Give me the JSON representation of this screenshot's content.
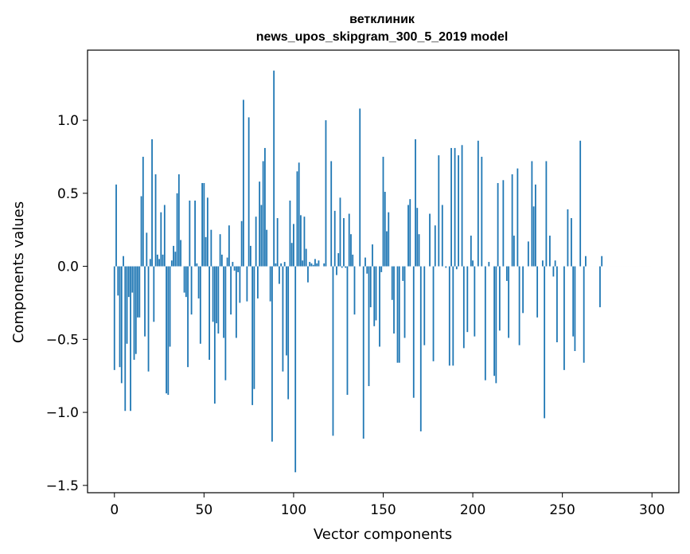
{
  "chart_data": {
    "type": "bar",
    "title_line1": "ветклиник",
    "title_line2": "news_upos_skipgram_300_5_2019 model",
    "xlabel": "Vector components",
    "ylabel": "Components values",
    "xlim": [
      -15,
      315
    ],
    "ylim": [
      -1.55,
      1.48
    ],
    "x_ticks": [
      0,
      50,
      100,
      150,
      200,
      250,
      300
    ],
    "x_tick_labels": [
      "0",
      "50",
      "100",
      "150",
      "200",
      "250",
      "300"
    ],
    "y_ticks": [
      -1.5,
      -1.0,
      -0.5,
      0.0,
      0.5,
      1.0
    ],
    "y_tick_labels": [
      "−1.5",
      "−1.0",
      "−0.5",
      "0.0",
      "0.5",
      "1.0"
    ],
    "bar_color": "#1f77b4",
    "grid": false,
    "values": [
      -0.71,
      0.56,
      -0.2,
      -0.69,
      -0.8,
      0.07,
      -0.99,
      -0.53,
      -0.21,
      -0.99,
      -0.18,
      -0.64,
      -0.6,
      -0.35,
      -0.35,
      0.48,
      0.75,
      -0.48,
      0.23,
      -0.72,
      0.05,
      0.87,
      -0.38,
      0.63,
      0.08,
      0.05,
      0.37,
      0.08,
      0.42,
      -0.87,
      -0.88,
      -0.55,
      0.04,
      0.14,
      0.1,
      0.5,
      0.63,
      0.18,
      0.0,
      -0.18,
      -0.21,
      -0.69,
      0.45,
      -0.33,
      0.0,
      0.45,
      0.02,
      -0.22,
      -0.53,
      0.57,
      0.57,
      0.2,
      0.47,
      -0.64,
      0.25,
      -0.38,
      -0.94,
      -0.39,
      -0.46,
      0.22,
      0.08,
      -0.49,
      -0.78,
      0.06,
      0.28,
      -0.33,
      0.03,
      -0.03,
      -0.49,
      -0.04,
      -0.25,
      0.31,
      1.14,
      0.0,
      -0.24,
      1.02,
      0.14,
      -0.95,
      -0.84,
      0.34,
      -0.22,
      0.58,
      0.42,
      0.72,
      0.81,
      0.25,
      0.0,
      -0.24,
      -1.2,
      1.34,
      0.02,
      0.33,
      -0.12,
      0.02,
      -0.72,
      0.03,
      -0.61,
      -0.91,
      0.45,
      0.16,
      0.29,
      -1.41,
      0.65,
      0.71,
      0.35,
      0.04,
      0.34,
      0.12,
      -0.11,
      0.03,
      0.02,
      0.01,
      0.05,
      0.02,
      0.04,
      0.0,
      0.0,
      0.02,
      1.0,
      0.0,
      0.0,
      0.72,
      -1.16,
      0.38,
      -0.06,
      0.09,
      0.47,
      -0.01,
      0.33,
      -0.01,
      -0.88,
      0.36,
      0.22,
      0.08,
      -0.33,
      0.0,
      0.0,
      1.08,
      0.0,
      -1.18,
      0.06,
      -0.05,
      -0.82,
      -0.28,
      0.15,
      -0.41,
      -0.37,
      0.0,
      -0.55,
      -0.04,
      0.75,
      0.51,
      0.24,
      0.37,
      0.0,
      -0.23,
      -0.46,
      0.0,
      -0.66,
      -0.66,
      0.0,
      -0.1,
      -0.49,
      0.0,
      0.42,
      0.46,
      0.0,
      -0.9,
      0.87,
      0.4,
      0.22,
      -1.13,
      0.0,
      -0.54,
      0.0,
      0.0,
      0.36,
      0.0,
      -0.65,
      0.28,
      0.0,
      0.76,
      0.0,
      0.42,
      0.0,
      -0.01,
      0.0,
      -0.68,
      0.81,
      -0.68,
      0.81,
      -0.02,
      0.76,
      0.0,
      0.83,
      -0.56,
      0.0,
      -0.45,
      0.0,
      0.21,
      0.04,
      -0.48,
      0.0,
      0.86,
      0.0,
      0.75,
      0.0,
      -0.78,
      0.0,
      0.03,
      0.0,
      0.0,
      -0.75,
      -0.8,
      0.57,
      -0.44,
      0.0,
      0.59,
      0.0,
      -0.1,
      -0.49,
      0.0,
      0.63,
      0.21,
      0.0,
      0.67,
      -0.54,
      0.0,
      -0.32,
      0.0,
      0.0,
      0.17,
      0.0,
      0.72,
      0.41,
      0.56,
      -0.35,
      0.0,
      0.0,
      0.04,
      -1.04,
      0.72,
      0.0,
      0.21,
      0.0,
      -0.07,
      0.04,
      -0.52,
      0.0,
      0.0,
      0.0,
      -0.71,
      0.0,
      0.39,
      0.0,
      0.33,
      -0.48,
      -0.58,
      0.0,
      0.0,
      0.86,
      0.0,
      -0.66,
      0.07,
      0.0,
      0.0,
      0.0,
      0.0,
      0.0,
      0.0,
      0.0,
      -0.28,
      0.07,
      0.0,
      0.0,
      0.0,
      0.0,
      0.0,
      0.0,
      0.0,
      0.0,
      0.0,
      0.0,
      0.0,
      0.0,
      0.0,
      0.0,
      0.0,
      0.0,
      0.0,
      0.0,
      0.0,
      0.0,
      0.0,
      0.0,
      0.0,
      0.0,
      0.0,
      0.0,
      0.0
    ]
  }
}
